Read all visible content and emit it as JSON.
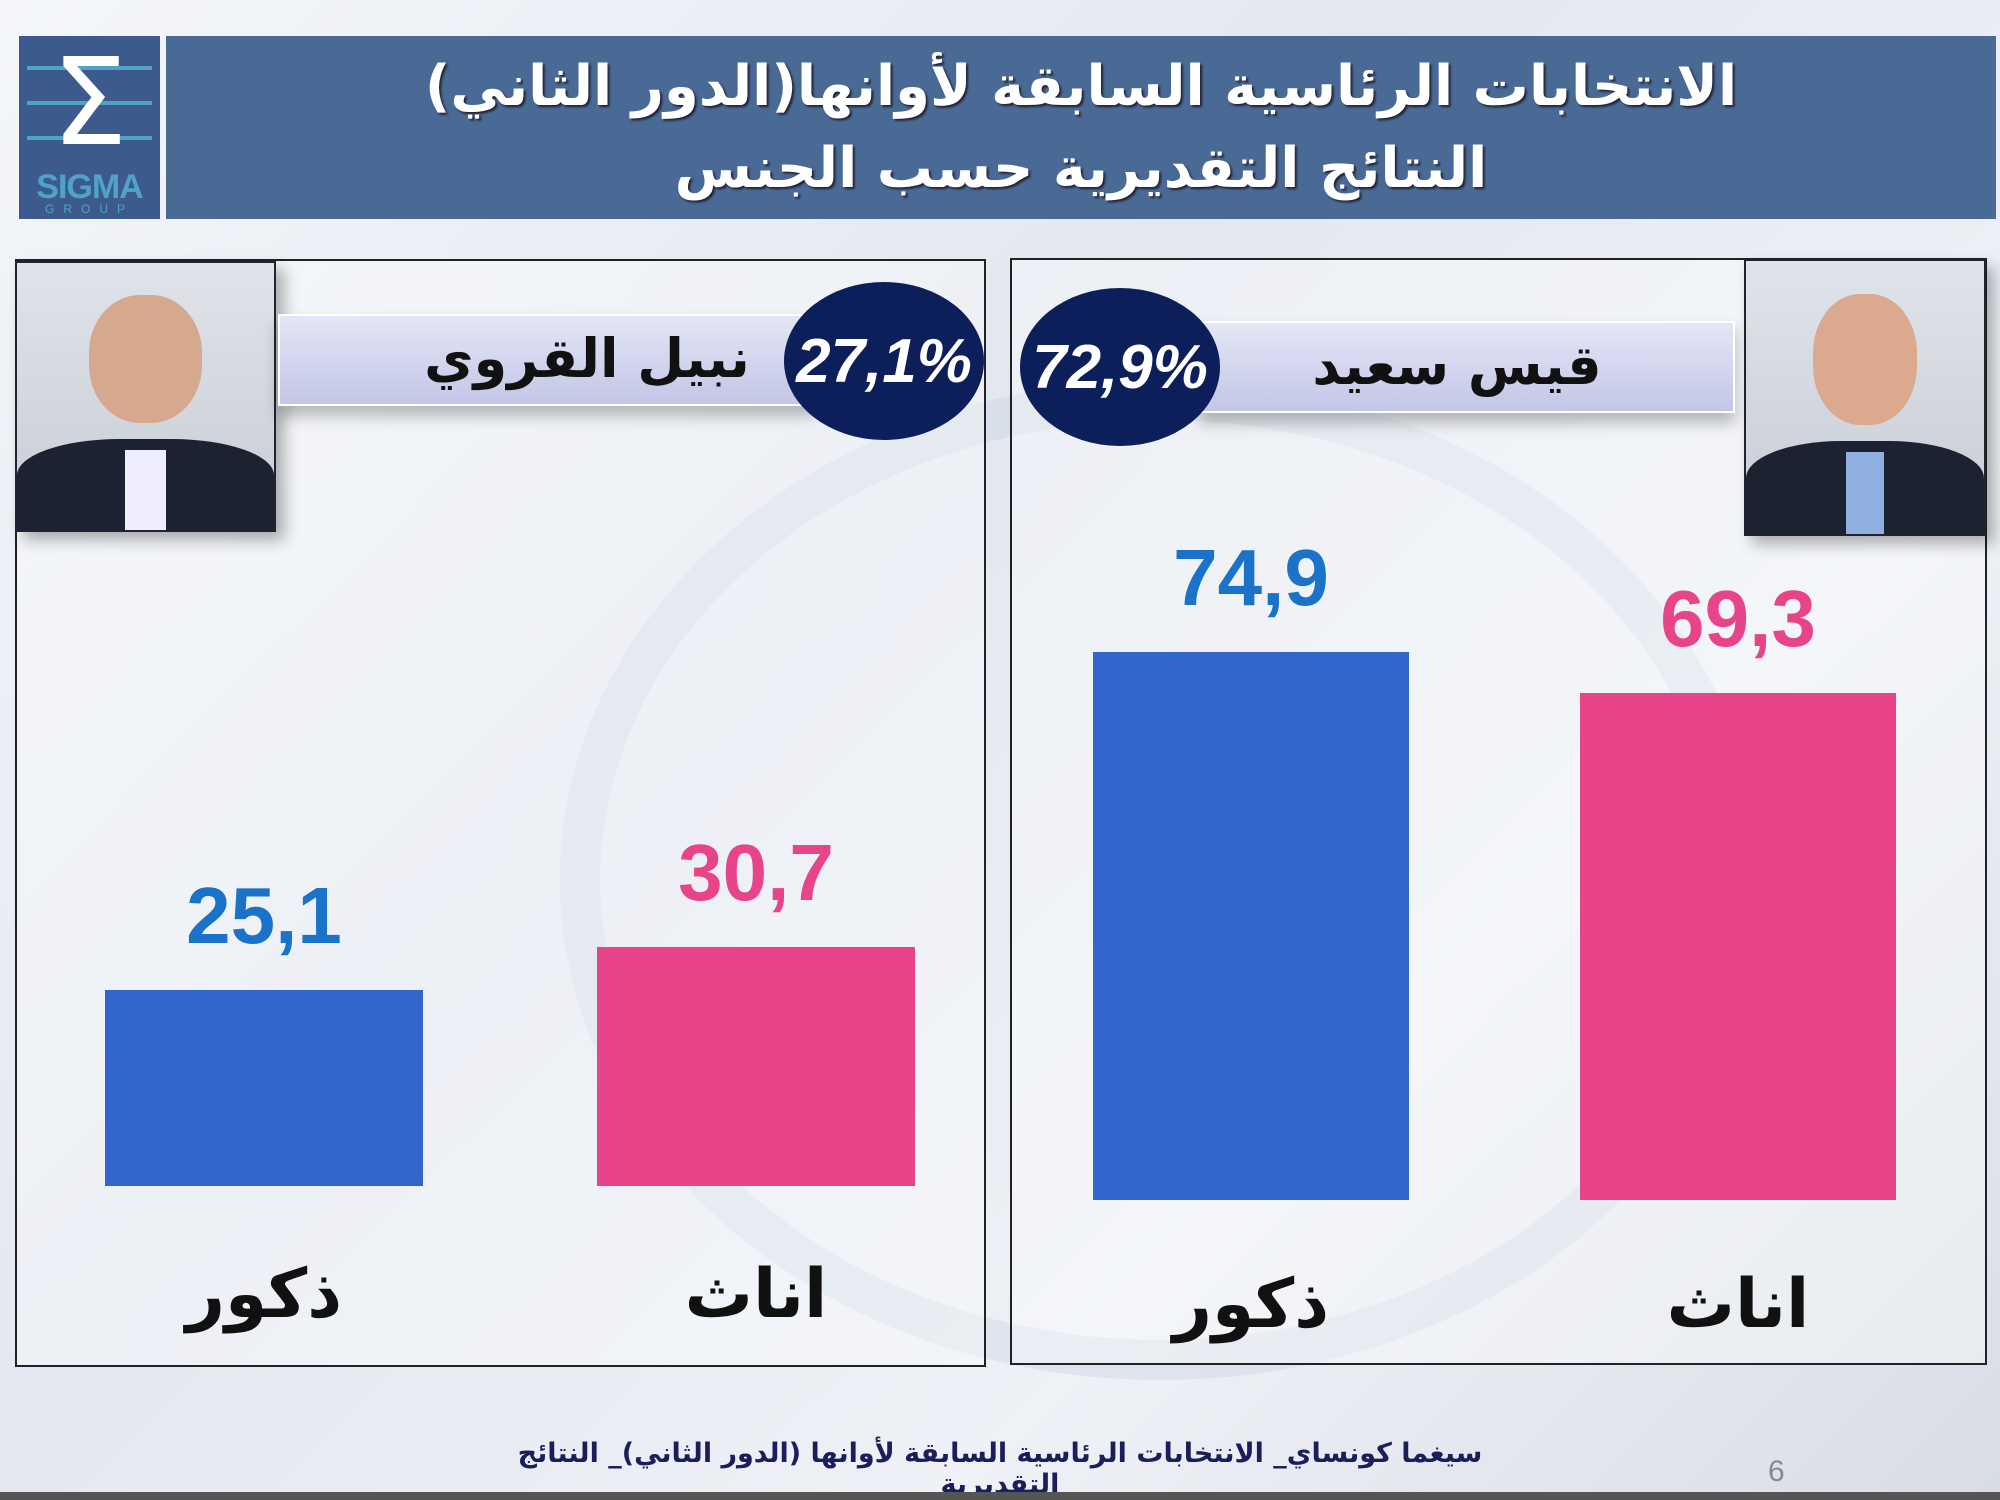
{
  "logo": {
    "symbol": "Σ",
    "name": "SIGMA",
    "group": "GROUP"
  },
  "header": {
    "title_line1": "الانتخابات الرئاسية السابقة لأوانها(الدور الثاني)",
    "title_line2": "النتائج التقديرية  حسب الجنس"
  },
  "colors": {
    "male": "#3366cc",
    "female": "#e8448a",
    "male_label": "#1a73c8",
    "female_label": "#e8448a",
    "header": "#4a6a96",
    "circle": "#0c1f5a"
  },
  "candidates": [
    {
      "name": "نبيل القروي",
      "total": "27,1%"
    },
    {
      "name": "قيس سعيد",
      "total": "72,9%"
    }
  ],
  "chart_data": [
    {
      "type": "bar",
      "title": "نبيل القروي",
      "categories": [
        "ذكور",
        "اناث"
      ],
      "values": [
        25.1,
        30.7
      ],
      "value_labels": [
        "25,1",
        "30,7"
      ],
      "grid": false
    },
    {
      "type": "bar",
      "title": "قيس سعيد",
      "categories": [
        "ذكور",
        "اناث"
      ],
      "values": [
        74.9,
        69.3
      ],
      "value_labels": [
        "74,9",
        "69,3"
      ],
      "grid": false
    }
  ],
  "footer": {
    "text": "سيغما كونساي_ الانتخابات الرئاسية السابقة لأوانها (الدور الثاني)_ النتائج التقديرية",
    "page": "6"
  }
}
